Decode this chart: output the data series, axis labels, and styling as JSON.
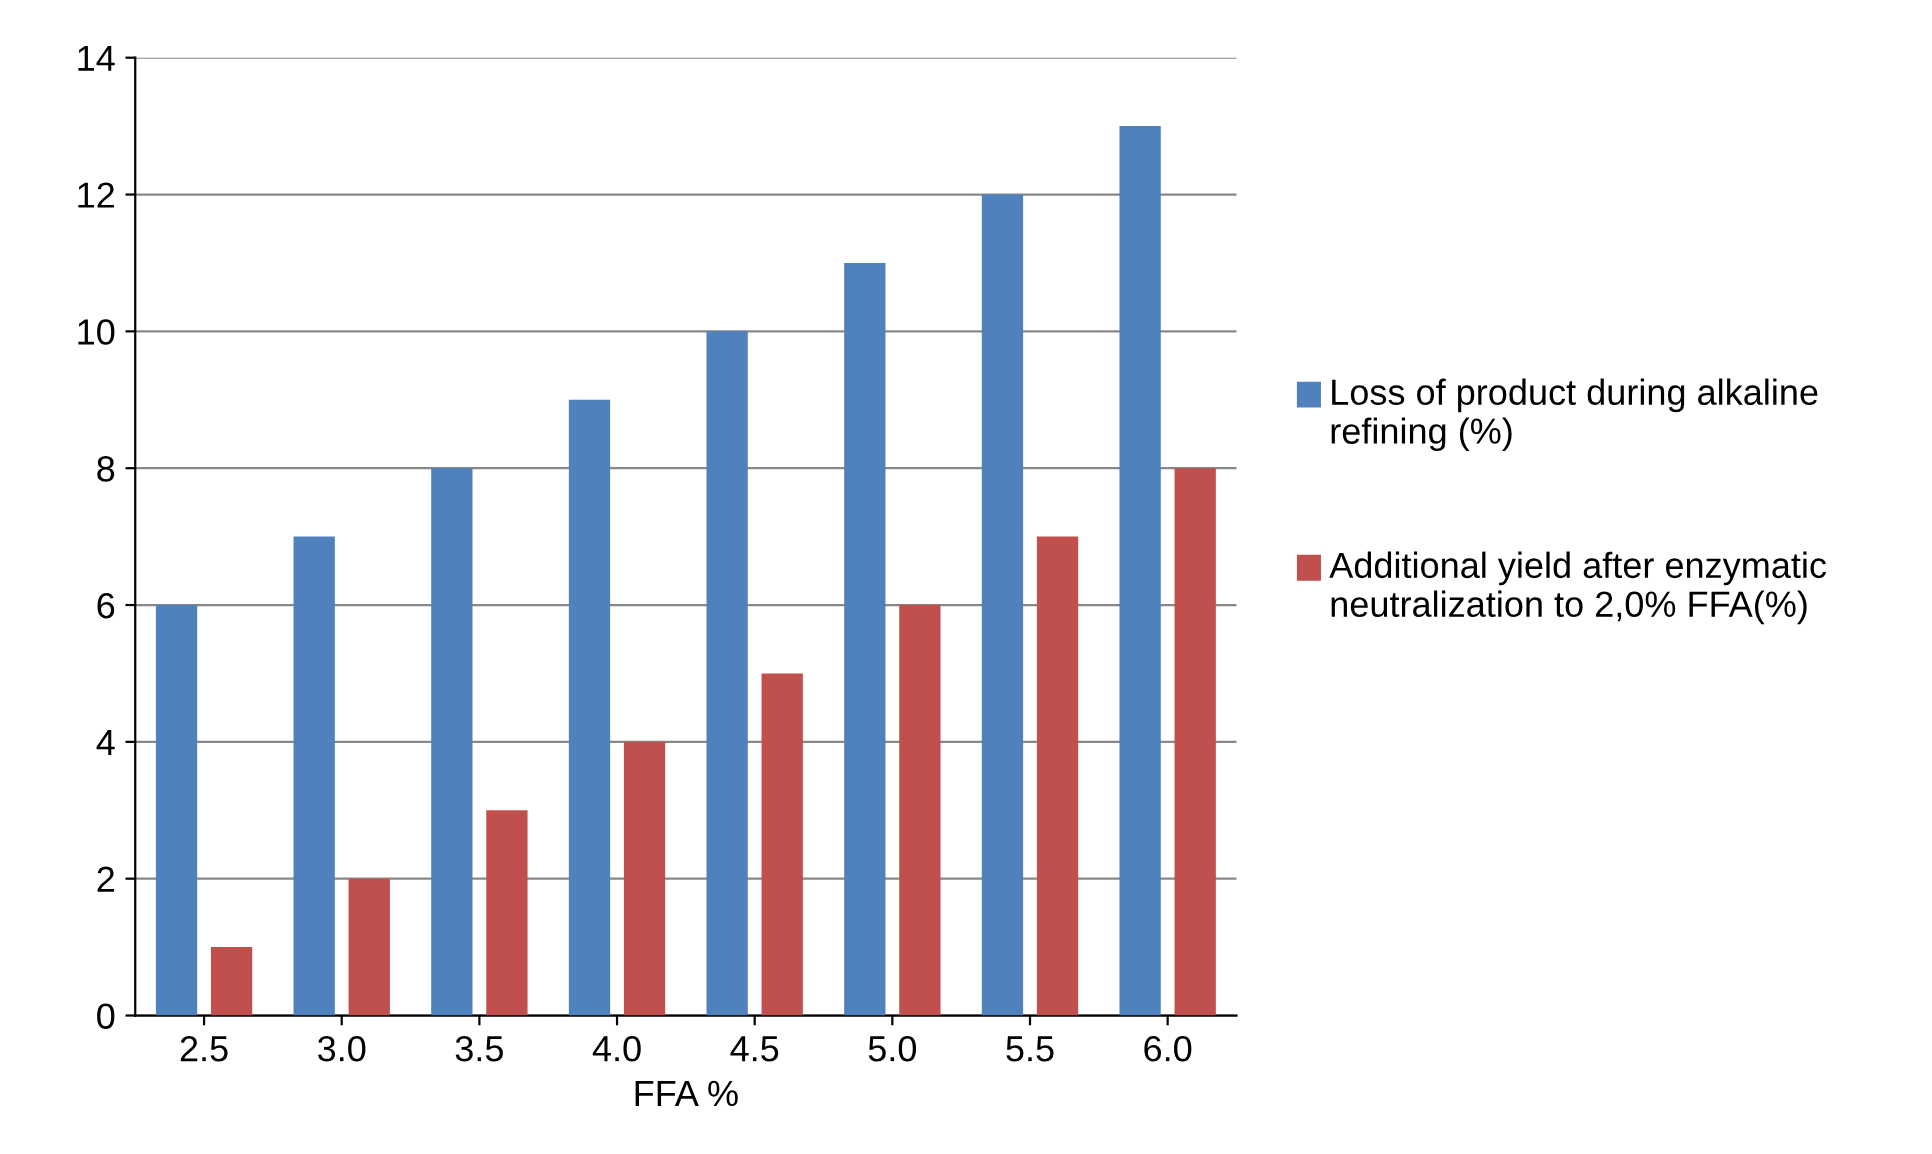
{
  "chart_data": {
    "type": "bar",
    "xlabel": "FFA %",
    "categories": [
      "2.5",
      "3.0",
      "3.5",
      "4.0",
      "4.5",
      "5.0",
      "5.5",
      "6.0"
    ],
    "series": [
      {
        "name": "Loss of product during alkaline refining (%)",
        "color": "#4f81bd",
        "values": [
          6,
          7,
          8,
          9,
          10,
          11,
          12,
          13
        ]
      },
      {
        "name": "Additional yield after enzymatic neutralization to 2,0% FFA(%)",
        "color": "#c0504d",
        "values": [
          1,
          2,
          3,
          4,
          5,
          6,
          7,
          8
        ]
      }
    ],
    "ylim": [
      0,
      14
    ],
    "yticks": [
      0,
      2,
      4,
      6,
      8,
      10,
      12,
      14
    ],
    "grid": "y",
    "legend": "right"
  }
}
